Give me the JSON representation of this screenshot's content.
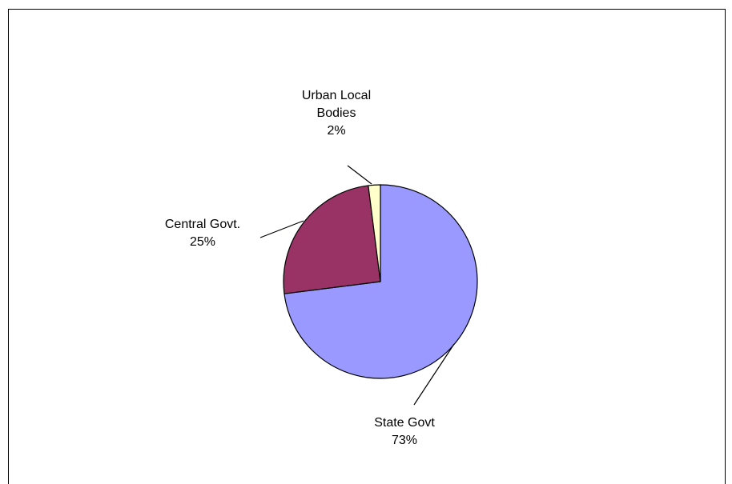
{
  "chart_data": {
    "type": "pie",
    "title": "",
    "slices": [
      {
        "label_lines": [
          "State Govt"
        ],
        "value": 73,
        "value_label": "73%",
        "color": "#9999ff"
      },
      {
        "label_lines": [
          "Central Govt."
        ],
        "value": 25,
        "value_label": "25%",
        "color": "#993366"
      },
      {
        "label_lines": [
          "Urban Local",
          "Bodies"
        ],
        "value": 2,
        "value_label": "2%",
        "color": "#ffffcc"
      }
    ],
    "start_angle_deg": 0,
    "direction": "clockwise",
    "legend": "none"
  }
}
